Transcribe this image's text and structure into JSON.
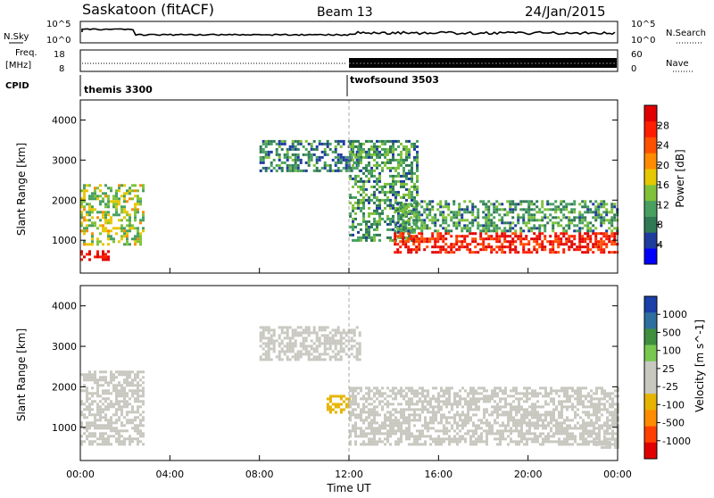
{
  "header": {
    "station": "Saskatoon (fitACF)",
    "beam": "Beam 13",
    "date": "24/Jan/2015"
  },
  "status_panels": {
    "nsky": {
      "label": "N.Sky",
      "ticks": [
        "10^5",
        "10^0"
      ]
    },
    "nsearch": {
      "label": "N.Search",
      "ticks": [
        "10^5",
        "10^0"
      ]
    },
    "freq": {
      "label_top": "Freq.",
      "label_bottom": "[MHz]",
      "ticks": [
        "18",
        "8"
      ]
    },
    "nave": {
      "label": "Nave",
      "ticks": [
        "60",
        "0"
      ]
    },
    "cpid": {
      "label": "CPID",
      "modes": [
        "themis 3300",
        "twofsound 3503"
      ]
    }
  },
  "colors": {
    "power_scale": [
      "#0000ff",
      "#1e3c9e",
      "#2f7a55",
      "#48a060",
      "#7fc23a",
      "#e6c800",
      "#ff8c00",
      "#ff5000",
      "#ff1e00",
      "#e00000"
    ],
    "velocity_scale": [
      "#1a3fa8",
      "#2e6fa0",
      "#3f8f3f",
      "#78c850",
      "#c8c8c0",
      "#c8c8c0",
      "#e6b400",
      "#ff8c00",
      "#ff4000",
      "#e00000"
    ],
    "ground_scatter": "#b4b4b4"
  },
  "chart_data": [
    {
      "type": "heatmap",
      "title": "Power",
      "xlabel": "",
      "ylabel": "Slant Range [km]",
      "x_ticks": [
        "00:00",
        "04:00",
        "08:00",
        "12:00",
        "16:00",
        "20:00",
        "00:00"
      ],
      "xlim": [
        0,
        24
      ],
      "y_ticks": [
        "1000",
        "2000",
        "3000",
        "4000"
      ],
      "ylim": [
        180,
        4500
      ],
      "colorbar": {
        "label": "Power [dB]",
        "ticks": [
          "4",
          "8",
          "12",
          "16",
          "20",
          "24",
          "28"
        ],
        "range": [
          0,
          30
        ]
      },
      "features": [
        {
          "from_hour": 0.0,
          "to_hour": 1.3,
          "range_km": [
            500,
            750
          ],
          "power_db": 28
        },
        {
          "from_hour": 0.0,
          "to_hour": 2.8,
          "range_km": [
            900,
            2400
          ],
          "power_db": 14
        },
        {
          "from_hour": 8.0,
          "to_hour": 12.5,
          "range_km": [
            2700,
            3500
          ],
          "power_db": 8
        },
        {
          "from_hour": 12.0,
          "to_hour": 15.0,
          "range_km": [
            1000,
            3500
          ],
          "power_db": 10
        },
        {
          "from_hour": 14.0,
          "to_hour": 24.0,
          "range_km": [
            700,
            1200
          ],
          "power_db": 26
        },
        {
          "from_hour": 14.0,
          "to_hour": 24.0,
          "range_km": [
            1200,
            2000
          ],
          "power_db": 10
        }
      ]
    },
    {
      "type": "heatmap",
      "title": "Velocity",
      "xlabel": "Time UT",
      "ylabel": "Slant Range [km]",
      "x_ticks": [
        "00:00",
        "04:00",
        "08:00",
        "12:00",
        "16:00",
        "20:00",
        "00:00"
      ],
      "xlim": [
        0,
        24
      ],
      "y_ticks": [
        "1000",
        "2000",
        "3000",
        "4000"
      ],
      "ylim": [
        180,
        4500
      ],
      "colorbar": {
        "label": "Velocity [m s^-1]",
        "ticks": [
          "1000",
          "500",
          "100",
          "25",
          "-25",
          "-100",
          "-500",
          "-1000"
        ],
        "range": [
          -1000,
          1000
        ]
      },
      "features": [
        {
          "from_hour": 0.0,
          "to_hour": 2.8,
          "range_km": [
            600,
            2400
          ],
          "velocity_ms": 0
        },
        {
          "from_hour": 8.0,
          "to_hour": 12.5,
          "range_km": [
            2700,
            3500
          ],
          "velocity_ms": 0
        },
        {
          "from_hour": 11.0,
          "to_hour": 12.0,
          "range_km": [
            1400,
            1800
          ],
          "velocity_ms": -300
        },
        {
          "from_hour": 12.0,
          "to_hour": 24.0,
          "range_km": [
            600,
            2000
          ],
          "velocity_ms": 0
        },
        {
          "from_hour": 23.0,
          "to_hour": 24.0,
          "range_km": [
            500,
            800
          ],
          "velocity_ms": 150
        }
      ]
    }
  ]
}
